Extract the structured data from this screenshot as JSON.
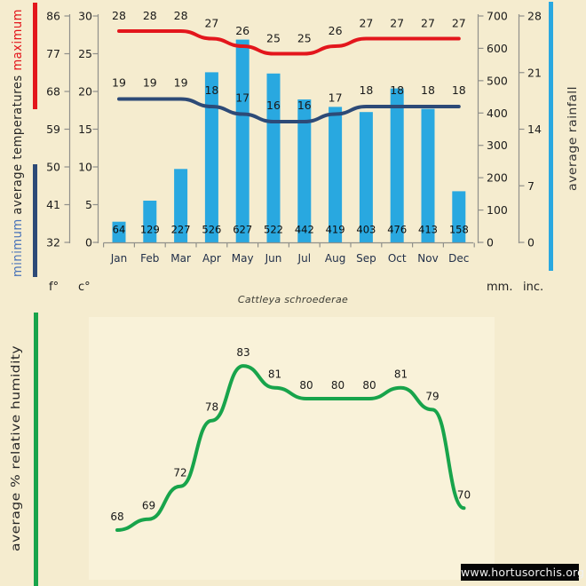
{
  "title": "Cattleya schroederae",
  "watermark": "www.hortusorchis.org",
  "colors": {
    "background": "#f5eccf",
    "plot_background": "#f9f2d9",
    "max_temp_red": "#e3161c",
    "min_temp_blue": "#2d4a77",
    "rainfall_blue": "#29a8e0",
    "humidity_green": "#18a44b",
    "axis_gray": "#90908a",
    "text_dark": "#1c1c1c",
    "month_text": "#22304a",
    "minimum_word_blue": "#4a73b8"
  },
  "chart_data": [
    {
      "type": "bar",
      "note": "combo chart: rainfall bars + two smoothed temperature lines, data labels shown",
      "categories": [
        "Jan",
        "Feb",
        "Mar",
        "Apr",
        "May",
        "Jun",
        "Jul",
        "Aug",
        "Sep",
        "Oct",
        "Nov",
        "Dec"
      ],
      "series": [
        {
          "name": "maximum",
          "type": "line",
          "unit": "c",
          "values": [
            28,
            28,
            28,
            27,
            26,
            25,
            25,
            26,
            27,
            27,
            27,
            27
          ]
        },
        {
          "name": "minimum",
          "type": "line",
          "unit": "c",
          "values": [
            19,
            19,
            19,
            18,
            17,
            16,
            16,
            17,
            18,
            18,
            18,
            18
          ]
        },
        {
          "name": "average rainfall",
          "type": "bar",
          "unit": "mm",
          "values": [
            64,
            129,
            227,
            526,
            627,
            522,
            442,
            419,
            403,
            476,
            413,
            158
          ]
        }
      ],
      "left_axis": {
        "fahrenheit": {
          "label": "f°",
          "ticks": [
            86,
            77,
            68,
            59,
            50,
            41,
            32
          ]
        },
        "celsius": {
          "label": "c°",
          "ticks": [
            30,
            25,
            20,
            15,
            10,
            5,
            0
          ],
          "range": [
            0,
            30
          ]
        },
        "side_label_words": {
          "bottom": "minimum",
          "middle": "average  temperatures",
          "top": "maximum"
        }
      },
      "right_axis": {
        "millimeters": {
          "label": "mm.",
          "ticks": [
            700,
            600,
            500,
            400,
            300,
            200,
            100,
            0
          ],
          "range": [
            0,
            700
          ]
        },
        "inches": {
          "label": "inc.",
          "ticks": [
            28,
            21,
            14,
            7,
            0
          ],
          "range": [
            0,
            28
          ]
        },
        "side_label": "average rainfall"
      },
      "grid": false,
      "legend_position": "rotated side labels"
    },
    {
      "type": "line",
      "note": "12 monthly points, no axes drawn, data labels above points",
      "series": [
        {
          "name": "average % relative humidity",
          "values": [
            68,
            69,
            72,
            78,
            83,
            81,
            80,
            80,
            80,
            81,
            79,
            70
          ]
        }
      ],
      "side_label": "average % relative humidity",
      "x_axis_shown": false,
      "y_axis_shown": false,
      "data_labels": true
    }
  ]
}
